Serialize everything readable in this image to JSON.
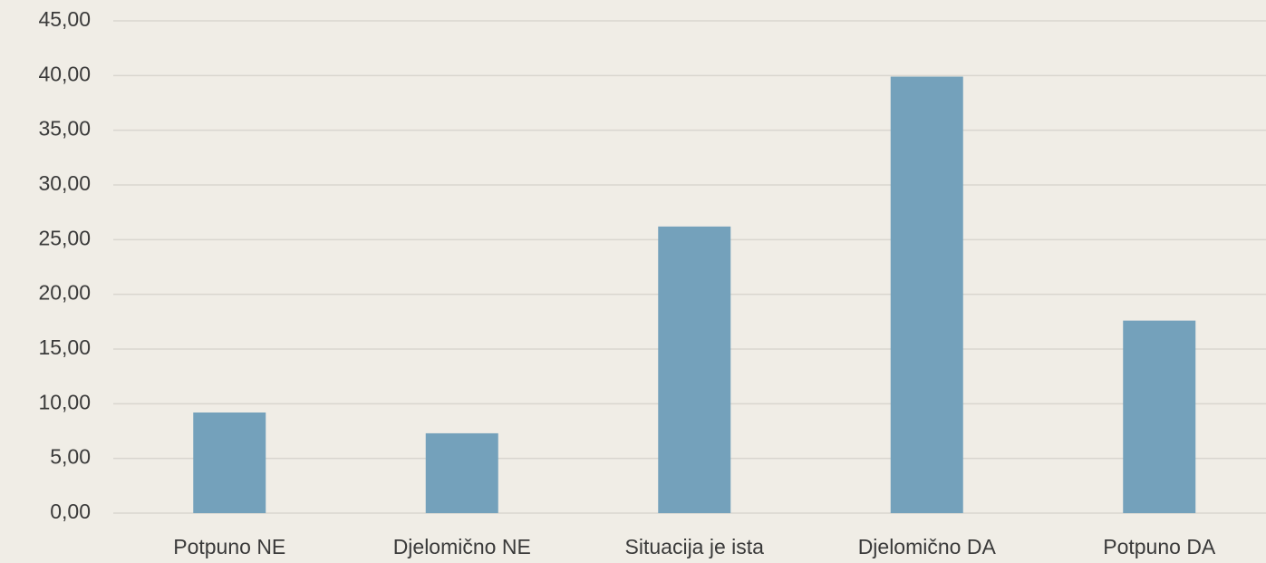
{
  "chart_data": {
    "type": "bar",
    "categories": [
      "Potpuno NE",
      "Djelomično NE",
      "Situacija je ista",
      "Djelomično DA",
      "Potpuno DA"
    ],
    "values": [
      9.2,
      7.3,
      26.2,
      39.9,
      17.6
    ],
    "color": "#74a1bb",
    "ylim": [
      0,
      45
    ],
    "yticks": [
      {
        "value": 0,
        "label": "0,00"
      },
      {
        "value": 5,
        "label": "5,00"
      },
      {
        "value": 10,
        "label": "10,00"
      },
      {
        "value": 15,
        "label": "15,00"
      },
      {
        "value": 20,
        "label": "20,00"
      },
      {
        "value": 25,
        "label": "25,00"
      },
      {
        "value": 30,
        "label": "30,00"
      },
      {
        "value": 35,
        "label": "35,00"
      },
      {
        "value": 40,
        "label": "40,00"
      },
      {
        "value": 45,
        "label": "45,00"
      }
    ],
    "grid": true
  }
}
